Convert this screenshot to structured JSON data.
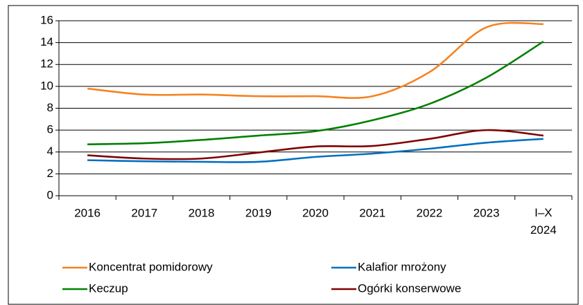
{
  "chart_data": {
    "type": "line",
    "categories": [
      "2016",
      "2017",
      "2018",
      "2019",
      "2020",
      "2021",
      "2022",
      "2023",
      "I–X 2024"
    ],
    "series": [
      {
        "name": "Koncentrat pomidorowy",
        "color": "#f58220",
        "values": [
          9.8,
          9.25,
          9.25,
          9.1,
          9.1,
          9.1,
          11.3,
          15.4,
          15.7
        ]
      },
      {
        "name": "Kalafior mrożony",
        "color": "#0070c0",
        "values": [
          3.25,
          3.15,
          3.1,
          3.1,
          3.55,
          3.85,
          4.3,
          4.85,
          5.2
        ]
      },
      {
        "name": "Keczup",
        "color": "#008000",
        "values": [
          4.7,
          4.8,
          5.1,
          5.5,
          5.9,
          6.9,
          8.4,
          10.8,
          14.1
        ]
      },
      {
        "name": "Ogórki konserwowe",
        "color": "#800000",
        "values": [
          3.7,
          3.4,
          3.4,
          3.95,
          4.5,
          4.55,
          5.2,
          6.0,
          5.5
        ]
      }
    ],
    "ylim": [
      0,
      16
    ],
    "yticks": [
      0,
      2,
      4,
      6,
      8,
      10,
      12,
      14,
      16
    ],
    "grid": true,
    "smooth": true
  }
}
